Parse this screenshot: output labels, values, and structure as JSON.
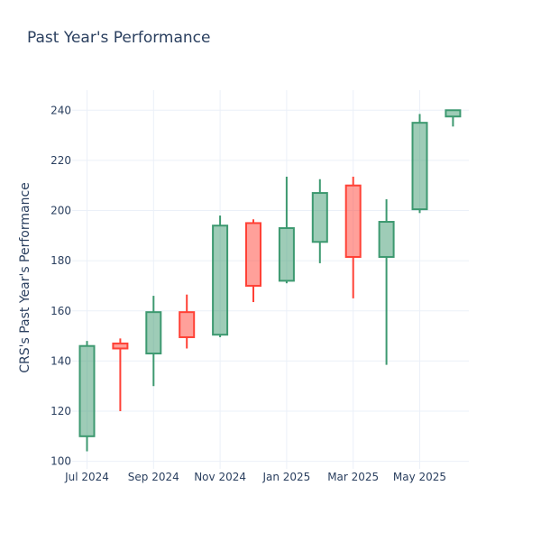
{
  "chart_data": {
    "type": "candlestick",
    "title": "Past Year's Performance",
    "xlabel": "",
    "ylabel": "CRS's Past Year's Performance",
    "x_tick_labels": [
      "Jul 2024",
      "Sep 2024",
      "Nov 2024",
      "Jan 2025",
      "Mar 2025",
      "May 2025"
    ],
    "y_ticks": [
      100,
      120,
      140,
      160,
      180,
      200,
      220,
      240
    ],
    "ylim": [
      97,
      248
    ],
    "grid": true,
    "legend": "none",
    "colors": {
      "increasing": "#3d9970",
      "decreasing": "#ff4136"
    },
    "candles": [
      {
        "period": "2024-07",
        "open": 110,
        "high": 148,
        "low": 104,
        "close": 146
      },
      {
        "period": "2024-08",
        "open": 147,
        "high": 149,
        "low": 120,
        "close": 145
      },
      {
        "period": "2024-09",
        "open": 143,
        "high": 166,
        "low": 130,
        "close": 159.5
      },
      {
        "period": "2024-10",
        "open": 159.5,
        "high": 166.5,
        "low": 145,
        "close": 149.5
      },
      {
        "period": "2024-11",
        "open": 150.5,
        "high": 198,
        "low": 149.5,
        "close": 194
      },
      {
        "period": "2024-12",
        "open": 195,
        "high": 196.5,
        "low": 163.5,
        "close": 170
      },
      {
        "period": "2025-01",
        "open": 172,
        "high": 213.5,
        "low": 171,
        "close": 193
      },
      {
        "period": "2025-02",
        "open": 187.5,
        "high": 212.5,
        "low": 179,
        "close": 207
      },
      {
        "period": "2025-03",
        "open": 210,
        "high": 213.5,
        "low": 165,
        "close": 181.5
      },
      {
        "period": "2025-04",
        "open": 181.5,
        "high": 204.5,
        "low": 138.5,
        "close": 195.5
      },
      {
        "period": "2025-05",
        "open": 200.5,
        "high": 238.5,
        "low": 199,
        "close": 235
      },
      {
        "period": "2025-06",
        "open": 237.5,
        "high": 240,
        "low": 233.5,
        "close": 240
      }
    ]
  }
}
